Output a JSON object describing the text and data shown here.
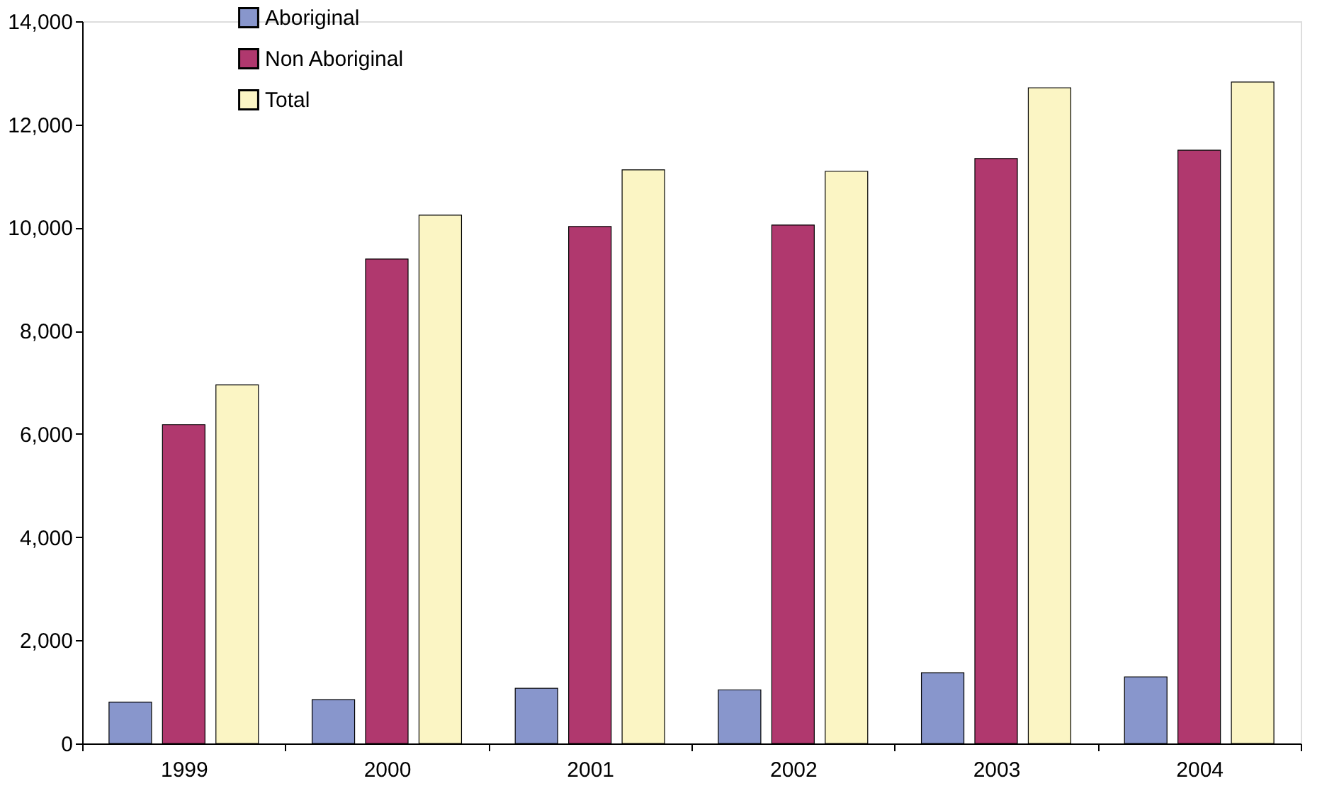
{
  "chart_data": {
    "type": "bar",
    "categories": [
      "1999",
      "2000",
      "2001",
      "2002",
      "2003",
      "2004"
    ],
    "series": [
      {
        "name": "Aboriginal",
        "color": "#8896cc",
        "values": [
          800,
          850,
          1070,
          1040,
          1370,
          1290
        ]
      },
      {
        "name": "Non Aboriginal",
        "color": "#b0386e",
        "values": [
          6180,
          9390,
          10020,
          10050,
          11340,
          11500
        ]
      },
      {
        "name": "Total",
        "color": "#fbf5c4",
        "values": [
          6950,
          10240,
          11120,
          11090,
          12710,
          12820
        ]
      }
    ],
    "ylim": [
      0,
      14000
    ],
    "yticks": [
      0,
      {
        "value": 2000,
        "label": "2,000"
      },
      {
        "value": 4000,
        "label": "4,000"
      },
      {
        "value": 6000,
        "label": "6,000"
      },
      {
        "value": 8000,
        "label": "8,000"
      },
      {
        "value": 10000,
        "label": "10,000"
      },
      {
        "value": 12000,
        "label": "12,000"
      },
      {
        "value": 14000,
        "label": "14,000"
      }
    ],
    "grid": false,
    "legend": "top left"
  }
}
